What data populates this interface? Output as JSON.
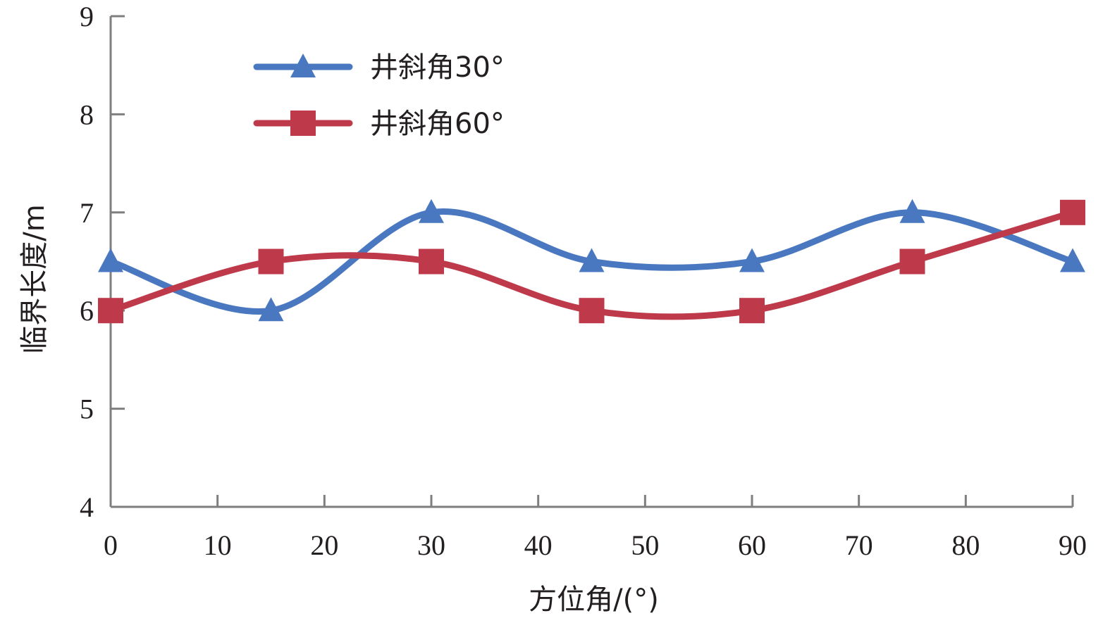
{
  "chart_data": {
    "type": "line",
    "smooth": true,
    "title": "",
    "xlabel": "方位角/(°)",
    "ylabel": "临界长度/m",
    "xlim": [
      0,
      90
    ],
    "ylim": [
      4,
      9
    ],
    "xticks": [
      "0",
      "10",
      "20",
      "30",
      "40",
      "50",
      "60",
      "70",
      "80",
      "90"
    ],
    "yticks": [
      "4",
      "5",
      "6",
      "7",
      "8",
      "9"
    ],
    "grid": false,
    "legend_position": "top-left",
    "series": [
      {
        "name": "井斜角30°",
        "color": "#4a78c0",
        "marker": "triangle",
        "x": [
          0,
          15,
          30,
          45,
          60,
          75,
          90
        ],
        "y": [
          6.5,
          6.0,
          7.0,
          6.5,
          6.5,
          7.0,
          6.5
        ]
      },
      {
        "name": "井斜角60°",
        "color": "#be3a4a",
        "marker": "square",
        "x": [
          0,
          15,
          30,
          45,
          60,
          75,
          90
        ],
        "y": [
          6.0,
          6.5,
          6.5,
          6.0,
          6.0,
          6.5,
          7.0
        ]
      }
    ]
  }
}
